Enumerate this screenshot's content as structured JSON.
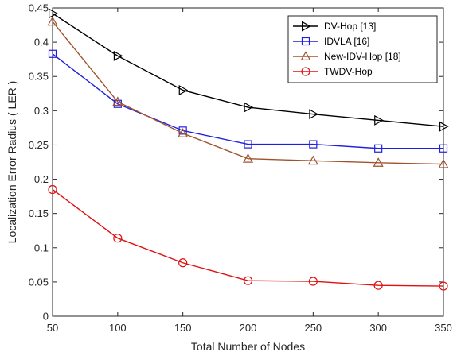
{
  "chart_data": {
    "type": "line",
    "xlabel": "Total Number of Nodes",
    "ylabel": "Localization Error Radius ( LER )",
    "x": [
      50,
      100,
      150,
      200,
      250,
      300,
      350
    ],
    "xlim": [
      50,
      350
    ],
    "ylim": [
      0,
      0.45
    ],
    "xticks": [
      "50",
      "100",
      "150",
      "200",
      "250",
      "300",
      "350"
    ],
    "yticks": [
      "0",
      "0.05",
      "0.1",
      "0.15",
      "0.2",
      "0.25",
      "0.3",
      "0.35",
      "0.4",
      "0.45"
    ],
    "grid": false,
    "legend_position": "top-right",
    "series": [
      {
        "name": "DV-Hop [13]",
        "color": "#000000",
        "marker": "triangle-right",
        "values": [
          0.442,
          0.38,
          0.33,
          0.305,
          0.295,
          0.286,
          0.277
        ]
      },
      {
        "name": "IDVLA [16]",
        "color": "#1f1fe0",
        "marker": "square",
        "values": [
          0.383,
          0.31,
          0.271,
          0.251,
          0.251,
          0.245,
          0.245
        ]
      },
      {
        "name": "New-IDV-Hop [18]",
        "color": "#a0522d",
        "marker": "triangle-up",
        "values": [
          0.43,
          0.313,
          0.267,
          0.23,
          0.227,
          0.224,
          0.222
        ]
      },
      {
        "name": "TWDV-Hop",
        "color": "#e01010",
        "marker": "circle",
        "values": [
          0.185,
          0.114,
          0.078,
          0.052,
          0.051,
          0.045,
          0.044
        ]
      }
    ]
  }
}
